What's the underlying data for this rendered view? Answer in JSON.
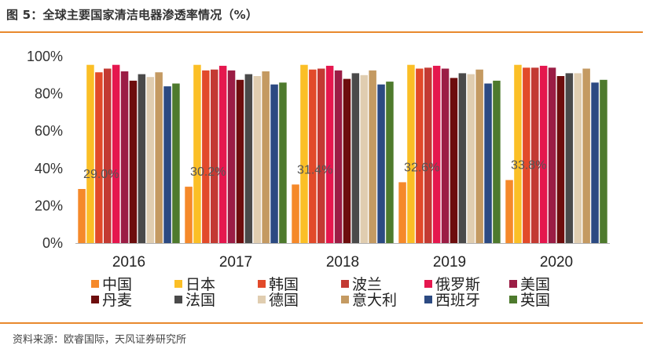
{
  "header": {
    "title": "图 5：全球主要国家清洁电器渗透率情况（%）"
  },
  "footer": {
    "source": "资料来源：欧睿国际，天风证券研究所"
  },
  "chart_data": {
    "type": "bar",
    "title": "",
    "xlabel": "",
    "ylabel": "",
    "categories": [
      "2016",
      "2017",
      "2018",
      "2019",
      "2020"
    ],
    "ylim": [
      0,
      100
    ],
    "yticks": [
      "0%",
      "20%",
      "40%",
      "60%",
      "80%",
      "100%"
    ],
    "ytick_values": [
      0,
      20,
      40,
      60,
      80,
      100
    ],
    "grid": false,
    "legend_position": "bottom",
    "series": [
      {
        "name": "中国",
        "color": "#F5892A",
        "values": [
          29.0,
          30.2,
          31.4,
          32.6,
          33.8
        ],
        "labels": [
          "29.0%",
          "30.2%",
          "31.4%",
          "32.6%",
          "33.8%"
        ]
      },
      {
        "name": "日本",
        "color": "#FBBF26",
        "values": [
          95.5,
          95.5,
          95.5,
          95.5,
          95.5
        ]
      },
      {
        "name": "韩国",
        "color": "#E24A2A",
        "values": [
          91.5,
          92.5,
          93.0,
          93.5,
          94.0
        ]
      },
      {
        "name": "波兰",
        "color": "#C33A33",
        "values": [
          93.5,
          93.0,
          93.5,
          94.0,
          94.0
        ]
      },
      {
        "name": "俄罗斯",
        "color": "#E5174E",
        "values": [
          95.5,
          95.0,
          95.0,
          95.0,
          95.0
        ]
      },
      {
        "name": "美国",
        "color": "#9B1D45",
        "values": [
          92.0,
          92.5,
          92.5,
          93.5,
          94.0
        ]
      },
      {
        "name": "丹麦",
        "color": "#6D0D0D",
        "values": [
          87.0,
          87.5,
          88.0,
          88.5,
          89.5
        ]
      },
      {
        "name": "法国",
        "color": "#4A4A4A",
        "values": [
          90.5,
          90.5,
          91.0,
          91.0,
          91.0
        ]
      },
      {
        "name": "德国",
        "color": "#E0CDB0",
        "values": [
          89.0,
          89.5,
          90.0,
          90.5,
          91.0
        ]
      },
      {
        "name": "意大利",
        "color": "#C49A62",
        "values": [
          91.5,
          92.0,
          92.5,
          93.0,
          93.5
        ]
      },
      {
        "name": "西班牙",
        "color": "#2C4A82",
        "values": [
          84.0,
          85.0,
          85.0,
          85.5,
          86.0
        ]
      },
      {
        "name": "英国",
        "color": "#4E7A2D",
        "values": [
          85.5,
          86.0,
          86.5,
          87.0,
          87.5
        ]
      }
    ]
  }
}
